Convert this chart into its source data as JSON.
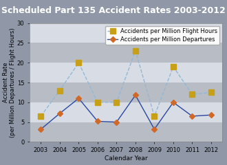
{
  "title": "Scheduled Part 135 Accident Rates 2003-2012",
  "xlabel": "Calendar Year",
  "ylabel": "Accident Rate\n(per Million Departures / Flight Hours)",
  "years": [
    2003,
    2004,
    2005,
    2006,
    2007,
    2008,
    2009,
    2010,
    2011,
    2012
  ],
  "flight_hours": [
    6.5,
    13.0,
    20.0,
    10.0,
    10.0,
    23.0,
    6.5,
    19.0,
    12.0,
    12.5
  ],
  "departures": [
    3.2,
    7.2,
    11.0,
    5.2,
    5.0,
    11.8,
    3.2,
    10.0,
    6.5,
    6.8
  ],
  "ylim": [
    0,
    30
  ],
  "yticks": [
    0,
    5,
    10,
    15,
    20,
    25,
    30
  ],
  "title_bg": "#606878",
  "fig_bg": "#9098a8",
  "plot_bg": "#c8ccd4",
  "band_dark": "#b8bcc4",
  "band_light": "#d8dce4",
  "line_fh_color": "#90b8d8",
  "line_dep_color": "#2848a0",
  "marker_fh_color": "#c8a018",
  "marker_dep_color": "#d06828",
  "title_fontsize": 9,
  "axis_label_fontsize": 6.5,
  "tick_fontsize": 6,
  "legend_fontsize": 6
}
